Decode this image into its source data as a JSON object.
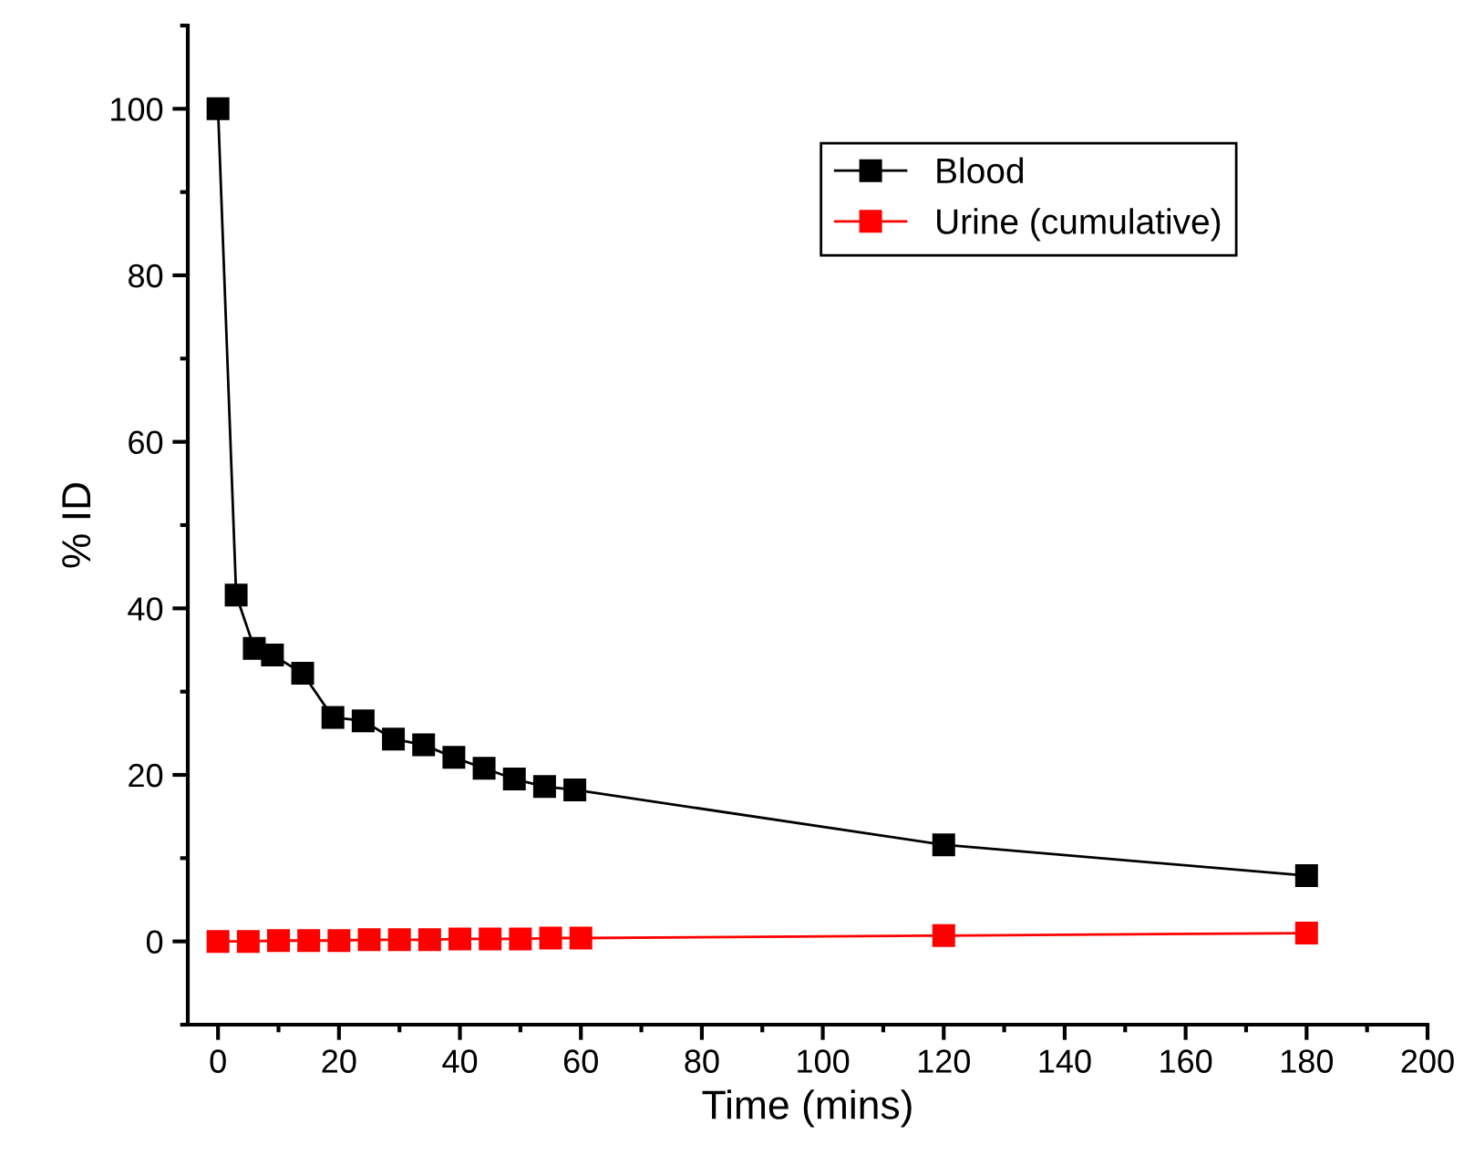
{
  "chart_data": {
    "type": "line",
    "xlabel": "Time (mins)",
    "ylabel": "% ID",
    "xlim": [
      -5,
      200
    ],
    "xticks": [
      0,
      20,
      40,
      60,
      80,
      100,
      120,
      140,
      160,
      180,
      200
    ],
    "ylim": [
      -10,
      110
    ],
    "yticks": [
      0,
      20,
      40,
      60,
      80,
      100
    ],
    "marker": "square",
    "line_style": "solid",
    "legend": "top right",
    "grid": false,
    "series": [
      {
        "name": "Blood",
        "color": "#000000",
        "x": [
          0,
          3,
          6,
          9,
          14,
          19,
          24,
          29,
          34,
          39,
          44,
          49,
          54,
          59,
          120,
          180
        ],
        "values": [
          100,
          41.6,
          35.2,
          34.4,
          32.2,
          26.9,
          26.5,
          24.3,
          23.6,
          22.1,
          20.8,
          19.5,
          18.6,
          18.2,
          11.6,
          7.9
        ]
      },
      {
        "name": "Urine (cumulative)",
        "color": "#ff0000",
        "x": [
          0,
          5,
          10,
          15,
          20,
          25,
          30,
          35,
          40,
          45,
          50,
          55,
          60,
          120,
          180
        ],
        "values": [
          0,
          0,
          0.1,
          0.1,
          0.1,
          0.2,
          0.2,
          0.2,
          0.3,
          0.3,
          0.3,
          0.4,
          0.4,
          0.7,
          1.0
        ]
      }
    ]
  }
}
